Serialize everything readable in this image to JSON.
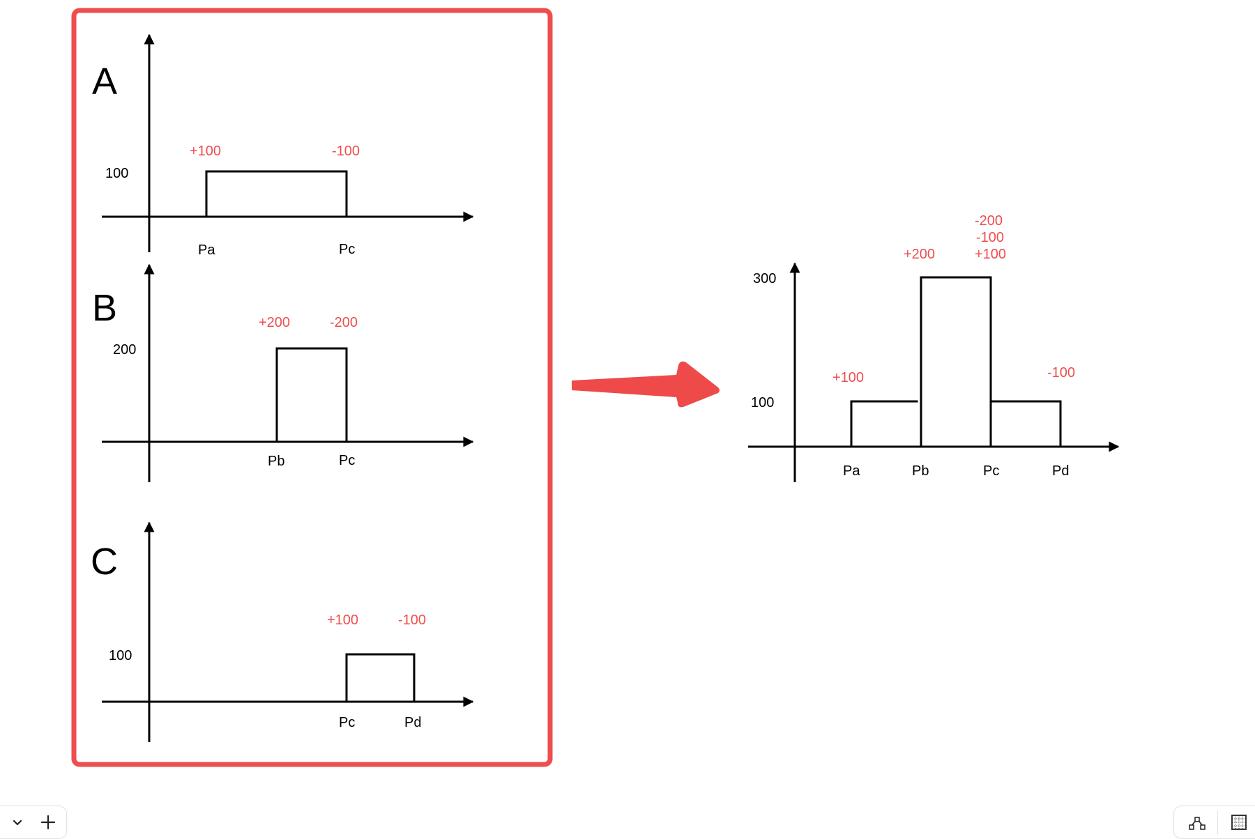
{
  "panels": {
    "A": {
      "letter": "A",
      "y_label": "100",
      "annotations": [
        "+100",
        "-100"
      ],
      "x_labels": [
        "Pa",
        "Pc"
      ]
    },
    "B": {
      "letter": "B",
      "y_label": "200",
      "annotations": [
        "+200",
        "-200"
      ],
      "x_labels": [
        "Pb",
        "Pc"
      ]
    },
    "C": {
      "letter": "C",
      "y_label": "100",
      "annotations": [
        "+100",
        "-100"
      ],
      "x_labels": [
        "Pc",
        "Pd"
      ]
    }
  },
  "result": {
    "y_labels": [
      "300",
      "100"
    ],
    "annotations": {
      "pa": "+100",
      "pb": "+200",
      "pc": [
        "-200",
        "-100",
        "+100"
      ],
      "pd": "-100"
    },
    "x_labels": [
      "Pa",
      "Pb",
      "Pc",
      "Pd"
    ]
  },
  "colors": {
    "frame": "#ee4e4e",
    "arrow": "#ef4a4a",
    "annotation": "#ee4e4e"
  },
  "toolbar_left": {
    "icons": [
      "chevron-down-icon",
      "plus-icon"
    ]
  },
  "toolbar_right": {
    "icons": [
      "path-tool-icon",
      "grid-icon"
    ]
  }
}
